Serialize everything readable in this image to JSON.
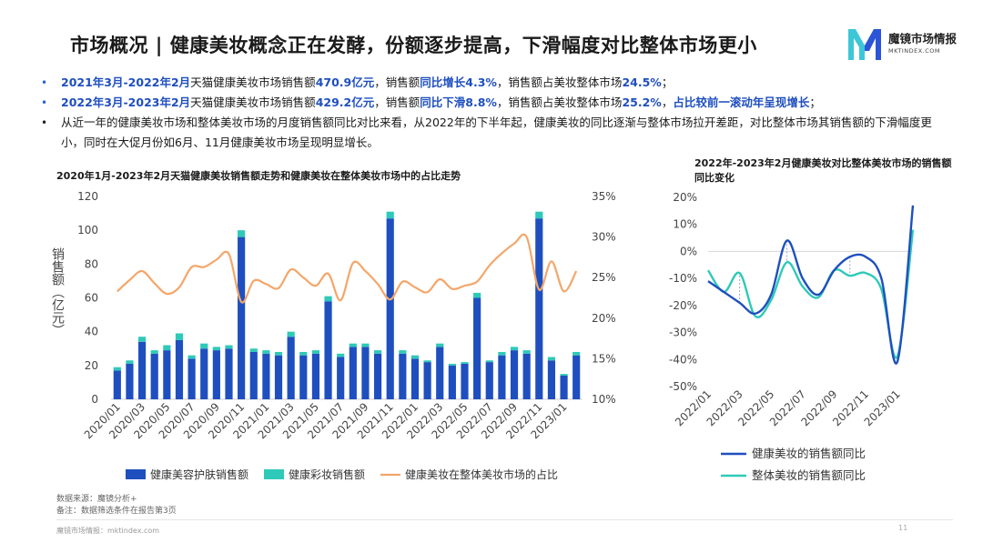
{
  "title": "市场概况 | 健康美妆概念正在发酵，份额逐步提高，下滑幅度对比整体市场更小",
  "logo": {
    "name": "魔镜市场情报",
    "domain": "MKTINDEX.COM",
    "brand_colors": [
      "#3cc7d8",
      "#2b55d6"
    ]
  },
  "bullets": [
    {
      "dot_color": "#2e5fd6",
      "segments": [
        {
          "text": "2021年3月-2022年2月",
          "hl": true
        },
        {
          "text": "天猫健康美妆市场销售额",
          "hl": false
        },
        {
          "text": "470.9亿元",
          "hl": true
        },
        {
          "text": "，销售额",
          "hl": false
        },
        {
          "text": "同比增长4.3%",
          "hl": true
        },
        {
          "text": "，销售额占美妆整体市场",
          "hl": false
        },
        {
          "text": "24.5%",
          "hl": true
        },
        {
          "text": "；",
          "hl": false
        }
      ]
    },
    {
      "dot_color": "#2e5fd6",
      "segments": [
        {
          "text": "2022年3月-2023年2月",
          "hl": true
        },
        {
          "text": "天猫健康美妆市场销售额",
          "hl": false
        },
        {
          "text": "429.2亿元",
          "hl": true
        },
        {
          "text": "，销售额",
          "hl": false
        },
        {
          "text": "同比下滑8.8%",
          "hl": true
        },
        {
          "text": "，销售额占美妆整体市场",
          "hl": false
        },
        {
          "text": "25.2%",
          "hl": true
        },
        {
          "text": "，",
          "hl": false
        },
        {
          "text": "占比较前一滚动年呈现增长",
          "hl": true
        },
        {
          "text": "；",
          "hl": false
        }
      ]
    },
    {
      "dot_color": "#222222",
      "segments": [
        {
          "text": "从近一年的健康美妆市场和整体美妆市场的月度销售额同比对比来看，从2022年的下半年起，健康美妆的同比逐渐与整体市场拉开差距，对比整体市场其销售额的下滑幅度更小，同时在大促月份如6月、11月健康美妆市场呈现明显增长。",
          "hl": false
        }
      ]
    }
  ],
  "chart_data": [
    {
      "type": "bar",
      "title": "2020年1月-2023年2月天猫健康美妆销售额走势和健康美妆在整体美妆市场中的占比走势",
      "ylabel": "销售额（亿元）",
      "ylim": [
        0,
        120
      ],
      "y_ticks": [
        "0",
        "20",
        "40",
        "60",
        "80",
        "100",
        "120"
      ],
      "y2lim": [
        10,
        35
      ],
      "y2_ticks": [
        "10%",
        "15%",
        "20%",
        "25%",
        "30%",
        "35%"
      ],
      "x_tick_labels": [
        "2020/01",
        "2020/03",
        "2020/05",
        "2020/07",
        "2020/09",
        "2020/11",
        "2021/01",
        "2021/03",
        "2021/05",
        "2021/07",
        "2021/09",
        "2021/11",
        "2022/01",
        "2022/03",
        "2022/05",
        "2022/07",
        "2022/09",
        "2022/11",
        "2023/01"
      ],
      "stacked": true,
      "series": [
        {
          "name": "健康美容护肤销售额",
          "color": "#1f4fbf",
          "values": [
            17,
            21,
            34,
            27,
            29,
            35,
            24,
            30,
            29,
            30,
            96,
            28,
            27,
            26,
            37,
            26,
            27,
            58,
            25,
            31,
            31,
            27,
            107,
            27,
            24,
            22,
            31,
            20,
            21,
            60,
            22,
            26,
            29,
            27,
            107,
            23,
            14,
            26
          ]
        },
        {
          "name": "健康彩妆销售额",
          "color": "#2ec9b8",
          "values": [
            2,
            2,
            3,
            2,
            3,
            4,
            2,
            3,
            2,
            2,
            4,
            2,
            2,
            2,
            3,
            2,
            2,
            3,
            2,
            2,
            2,
            2,
            4,
            2,
            2,
            1,
            2,
            1,
            1,
            3,
            1,
            2,
            2,
            2,
            4,
            2,
            1,
            2
          ]
        },
        {
          "name": "健康美妆在整体美妆市场的占比",
          "color": "#f4a66a",
          "axis": "right",
          "values": [
            23.3,
            24.7,
            25.8,
            24.3,
            23.0,
            23.8,
            26.3,
            26.3,
            27.2,
            27.9,
            22.0,
            24.6,
            24.2,
            23.7,
            26.0,
            25.0,
            24.0,
            25.5,
            22.2,
            26.8,
            25.8,
            24.2,
            22.3,
            24.5,
            23.8,
            23.2,
            24.8,
            23.6,
            24.0,
            24.5,
            26.5,
            28.0,
            29.2,
            30.0,
            23.5,
            27.0,
            23.3,
            25.8
          ]
        }
      ]
    },
    {
      "type": "line",
      "title": "2022年-2023年2月健康美妆对比整体美妆市场的销售额同比变化",
      "ylim": [
        -50,
        20
      ],
      "y_ticks": [
        "-50%",
        "-40%",
        "-30%",
        "-20%",
        "-10%",
        "0%",
        "10%",
        "20%"
      ],
      "x_tick_labels": [
        "2022/01",
        "2022/03",
        "2022/05",
        "2022/07",
        "2022/09",
        "2022/11",
        "2023/01"
      ],
      "series": [
        {
          "name": "健康美妆的销售额同比",
          "color": "#1f4fbf",
          "values": [
            -11,
            -15,
            -19,
            -23,
            -16,
            4,
            -10,
            -16,
            -7,
            -2,
            -2,
            -10,
            -41,
            17
          ]
        },
        {
          "name": "整体美妆的销售额同比",
          "color": "#2ec9b8",
          "values": [
            -7,
            -15,
            -8,
            -24,
            -18,
            -4,
            -13,
            -17,
            -7,
            -9,
            -8,
            -14,
            -39,
            8
          ]
        }
      ]
    }
  ],
  "source": "数据来源：魔镜分析+",
  "note": "备注：数据筛选条件在报告第3页",
  "footer": "魔镜市场情报：mktindex.com",
  "page_number": "11"
}
